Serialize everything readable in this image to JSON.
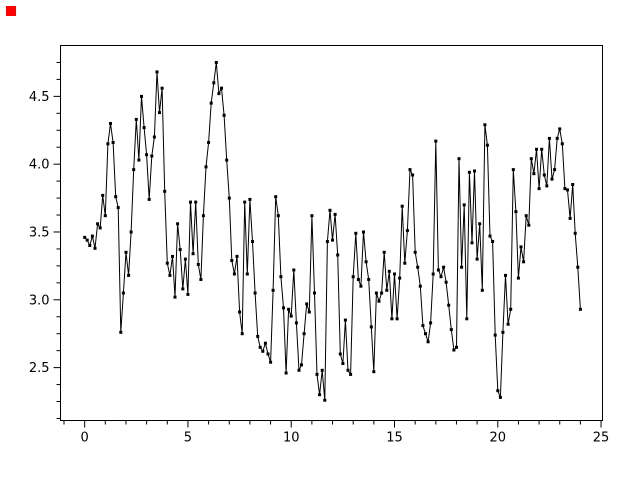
{
  "figure": {
    "background": "#ffffff",
    "red_square_color": "#ff0000"
  },
  "chart_data": {
    "type": "line",
    "title": "",
    "xlabel": "",
    "ylabel": "",
    "grid": false,
    "legend": null,
    "line_color": "#000000",
    "marker": "filled-square",
    "marker_size": 3,
    "xlim": [
      -1.17,
      25.07
    ],
    "ylim": [
      2.11,
      4.875
    ],
    "x_tick_values": [
      0,
      5,
      10,
      15,
      20,
      25
    ],
    "x_tick_labels": [
      "0",
      "5",
      "10",
      "15",
      "20",
      "25"
    ],
    "x_minor_step": 1,
    "y_tick_values": [
      2.5,
      3.0,
      3.5,
      4.0,
      4.5
    ],
    "y_tick_labels": [
      "2.5",
      "3.0",
      "3.5",
      "4.0",
      "4.5"
    ],
    "y_minor_step": 0.125,
    "x_start": 0,
    "x_step": 0.125,
    "values": [
      3.46,
      3.44,
      3.4,
      3.47,
      3.38,
      3.56,
      3.53,
      3.77,
      3.62,
      4.15,
      4.3,
      4.16,
      3.76,
      3.68,
      2.76,
      3.05,
      3.35,
      3.18,
      3.5,
      3.96,
      4.33,
      4.03,
      4.5,
      4.27,
      4.07,
      3.74,
      4.06,
      4.2,
      4.68,
      4.38,
      4.56,
      3.8,
      3.27,
      3.18,
      3.32,
      3.02,
      3.56,
      3.37,
      3.08,
      3.3,
      3.04,
      3.72,
      3.34,
      3.72,
      3.26,
      3.15,
      3.62,
      3.98,
      4.16,
      4.45,
      4.6,
      4.75,
      4.52,
      4.56,
      4.36,
      4.03,
      3.75,
      3.29,
      3.19,
      3.32,
      2.91,
      2.75,
      3.72,
      3.19,
      3.74,
      3.43,
      3.05,
      2.73,
      2.65,
      2.62,
      2.68,
      2.6,
      2.54,
      3.07,
      3.76,
      3.62,
      3.17,
      2.94,
      2.46,
      2.93,
      2.88,
      3.22,
      2.83,
      2.48,
      2.52,
      2.75,
      2.97,
      2.91,
      3.62,
      3.05,
      2.45,
      2.3,
      2.48,
      2.26,
      3.43,
      3.66,
      3.44,
      3.63,
      3.33,
      2.6,
      2.53,
      2.85,
      2.48,
      2.45,
      3.17,
      3.49,
      3.15,
      3.1,
      3.5,
      3.28,
      3.15,
      2.8,
      2.47,
      3.05,
      2.99,
      3.05,
      3.35,
      3.07,
      3.21,
      2.86,
      3.19,
      2.86,
      3.16,
      3.69,
      3.27,
      3.51,
      3.96,
      3.92,
      3.35,
      3.24,
      3.1,
      2.81,
      2.75,
      2.69,
      2.83,
      3.19,
      4.17,
      3.22,
      3.17,
      3.24,
      3.13,
      2.96,
      2.78,
      2.63,
      2.65,
      4.04,
      3.24,
      3.7,
      2.86,
      3.94,
      3.42,
      3.95,
      3.3,
      3.56,
      3.07,
      4.29,
      4.14,
      3.47,
      3.43,
      2.74,
      2.33,
      2.28,
      2.76,
      3.18,
      2.82,
      2.93,
      3.96,
      3.65,
      3.16,
      3.39,
      3.28,
      3.62,
      3.55,
      4.04,
      3.93,
      4.11,
      3.82,
      4.11,
      3.92,
      3.84,
      4.19,
      3.89,
      3.96,
      4.19,
      4.26,
      4.15,
      3.82,
      3.81,
      3.6,
      3.85,
      3.49,
      3.24,
      2.93
    ]
  }
}
